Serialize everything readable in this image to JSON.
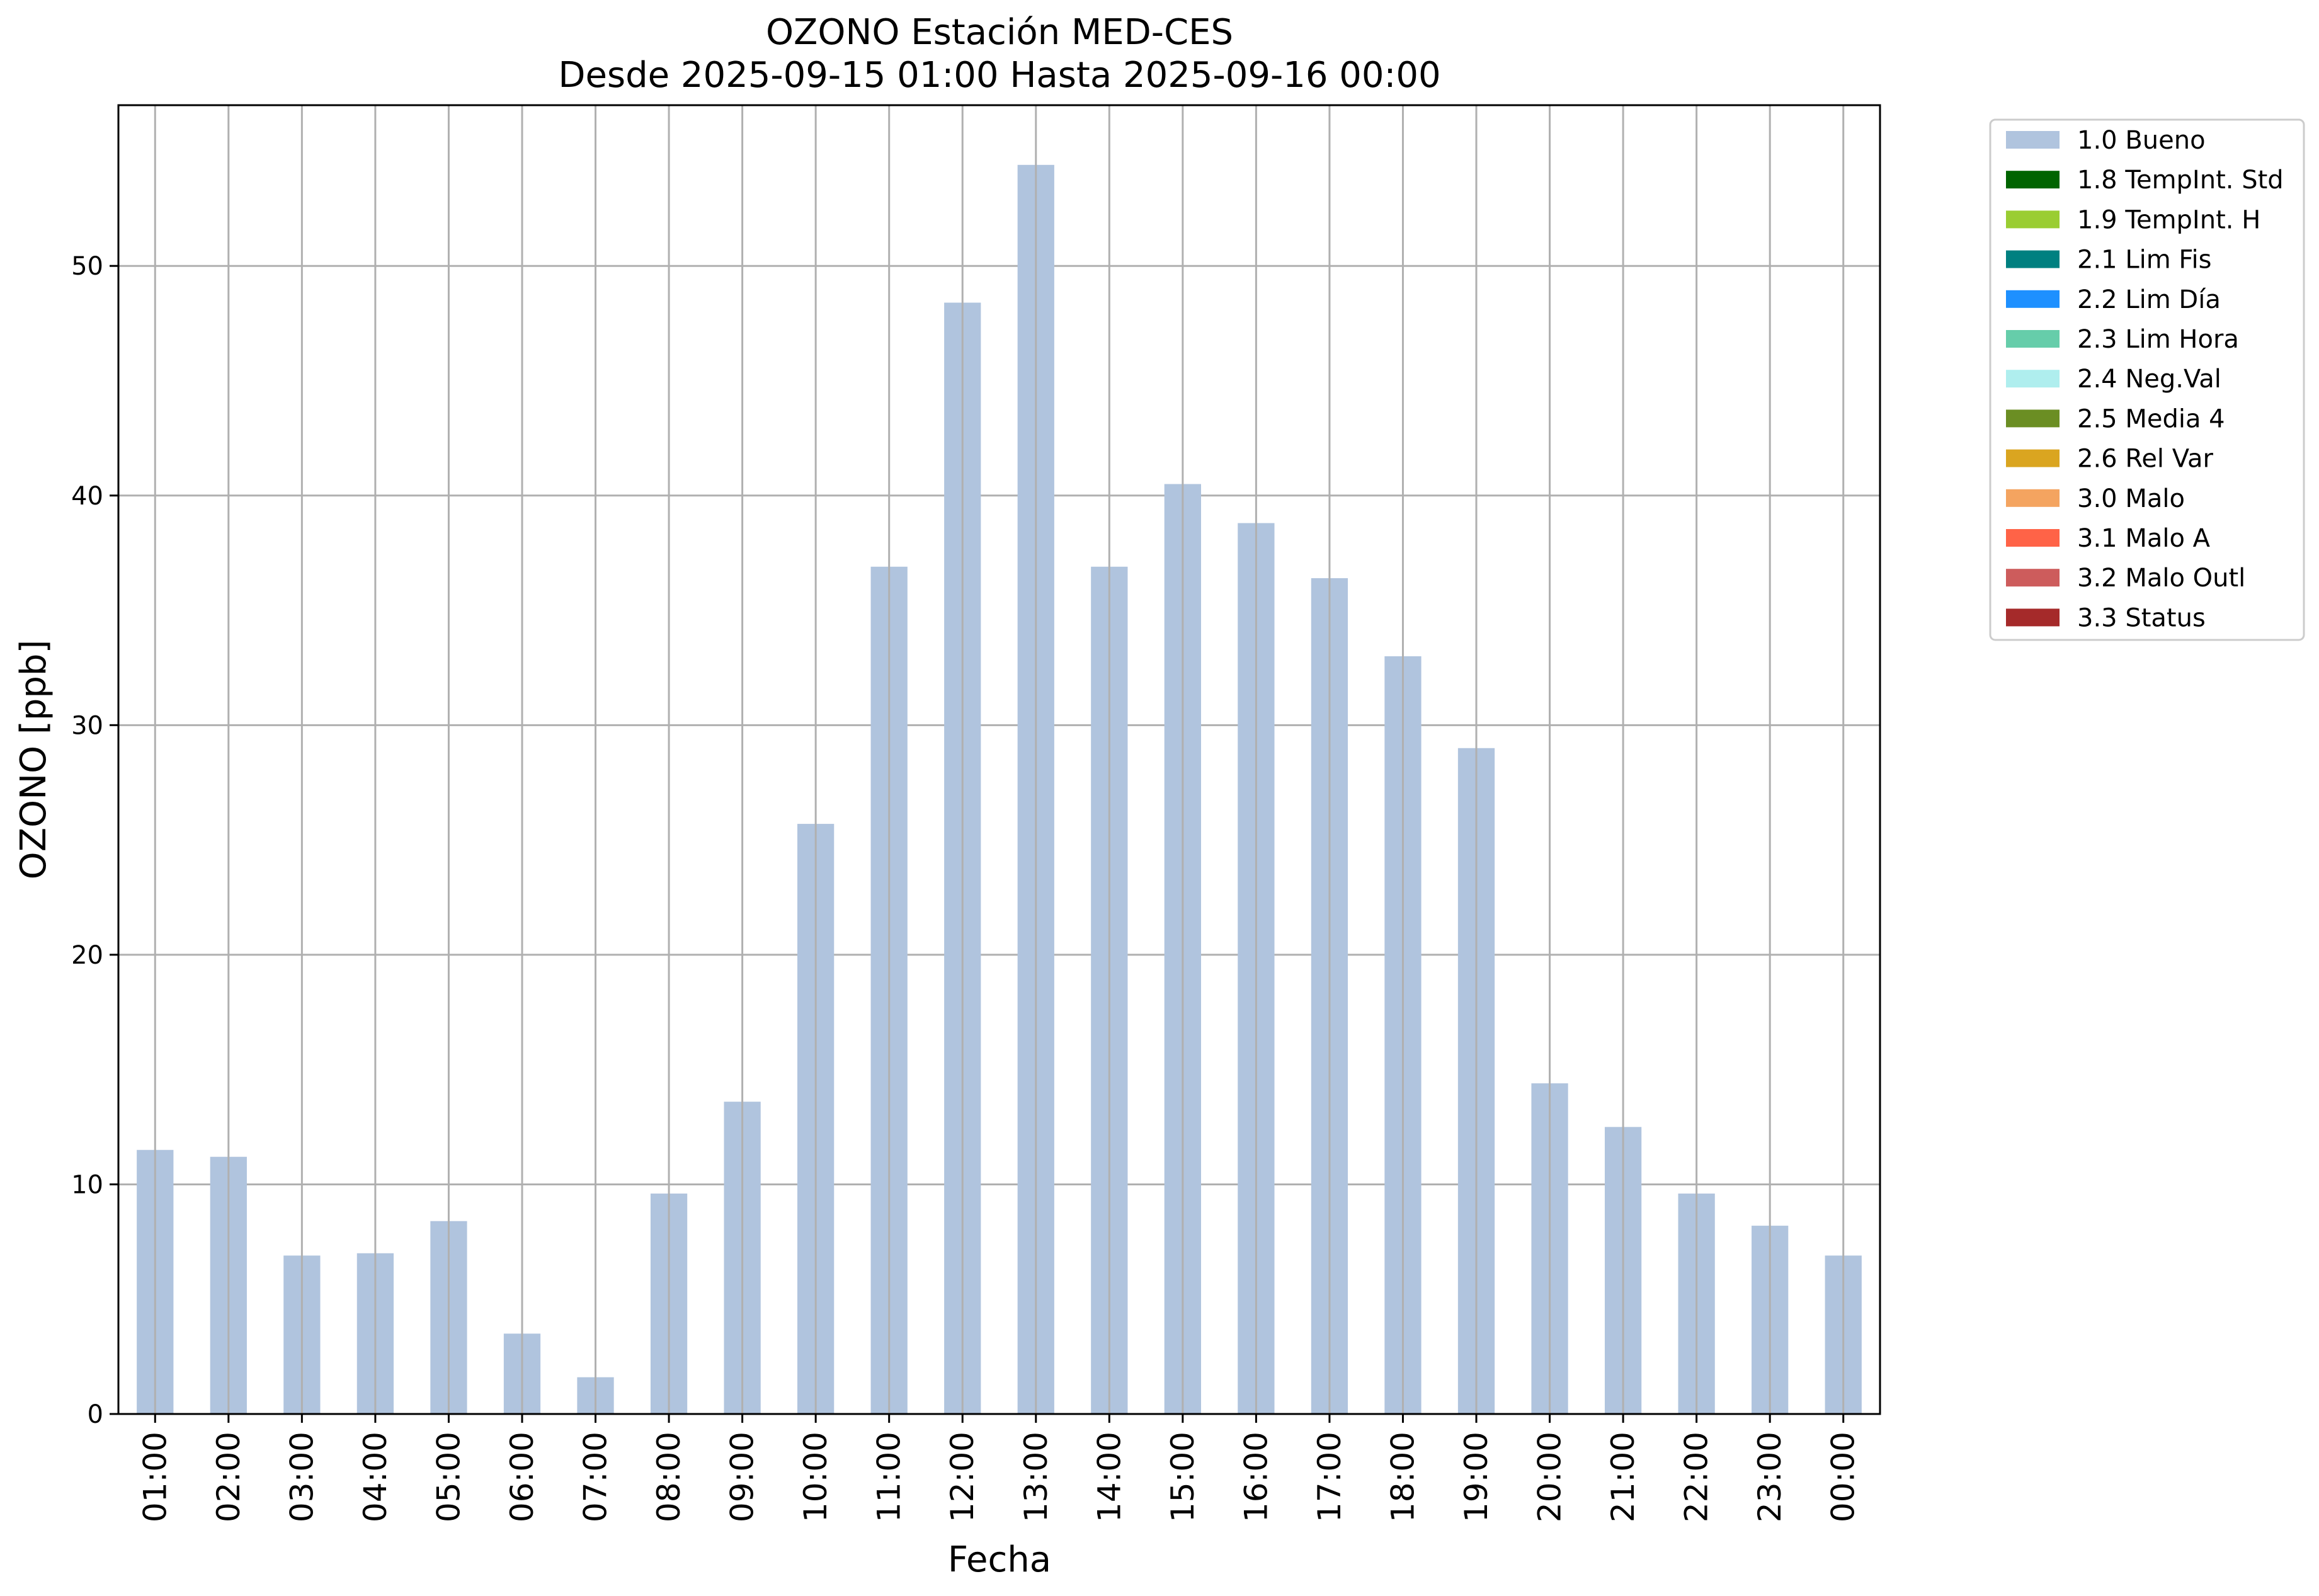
{
  "chart_data": {
    "type": "bar",
    "title": "OZONO Estación MED-CES",
    "subtitle": "Desde 2025-09-15 01:00 Hasta 2025-09-16 00:00",
    "xlabel": "Fecha",
    "ylabel": "OZONO [ppb]",
    "ylim": [
      0,
      57
    ],
    "yticks": [
      0,
      10,
      20,
      30,
      40,
      50
    ],
    "grid": true,
    "legend_position": "outside-top-right",
    "categories": [
      "01:00",
      "02:00",
      "03:00",
      "04:00",
      "05:00",
      "06:00",
      "07:00",
      "08:00",
      "09:00",
      "10:00",
      "11:00",
      "12:00",
      "13:00",
      "14:00",
      "15:00",
      "16:00",
      "17:00",
      "18:00",
      "19:00",
      "20:00",
      "21:00",
      "22:00",
      "23:00",
      "00:00"
    ],
    "series": [
      {
        "name": "1.0 Bueno",
        "color": "#b0c4de",
        "values": [
          11.5,
          11.2,
          6.9,
          7.0,
          8.4,
          3.5,
          1.6,
          9.6,
          13.6,
          25.7,
          36.9,
          48.4,
          54.4,
          36.9,
          40.5,
          38.8,
          36.4,
          33.0,
          29.0,
          14.4,
          12.5,
          9.6,
          8.2,
          6.9
        ]
      }
    ],
    "legend": [
      {
        "label": "1.0 Bueno",
        "color": "#b0c4de"
      },
      {
        "label": "1.8 TempInt. Std",
        "color": "#006400"
      },
      {
        "label": "1.9 TempInt. H",
        "color": "#9acd32"
      },
      {
        "label": "2.1 Lim Fis",
        "color": "#008080"
      },
      {
        "label": "2.2 Lim Día",
        "color": "#1e90ff"
      },
      {
        "label": "2.3 Lim Hora",
        "color": "#66cdaa"
      },
      {
        "label": "2.4 Neg.Val",
        "color": "#afeeee"
      },
      {
        "label": "2.5 Media 4",
        "color": "#6b8e23"
      },
      {
        "label": "2.6 Rel Var",
        "color": "#daa520"
      },
      {
        "label": "3.0 Malo",
        "color": "#f4a460"
      },
      {
        "label": "3.1 Malo A",
        "color": "#ff6347"
      },
      {
        "label": "3.2 Malo Outl",
        "color": "#cd5c5c"
      },
      {
        "label": "3.3 Status",
        "color": "#a52a2a"
      }
    ]
  }
}
